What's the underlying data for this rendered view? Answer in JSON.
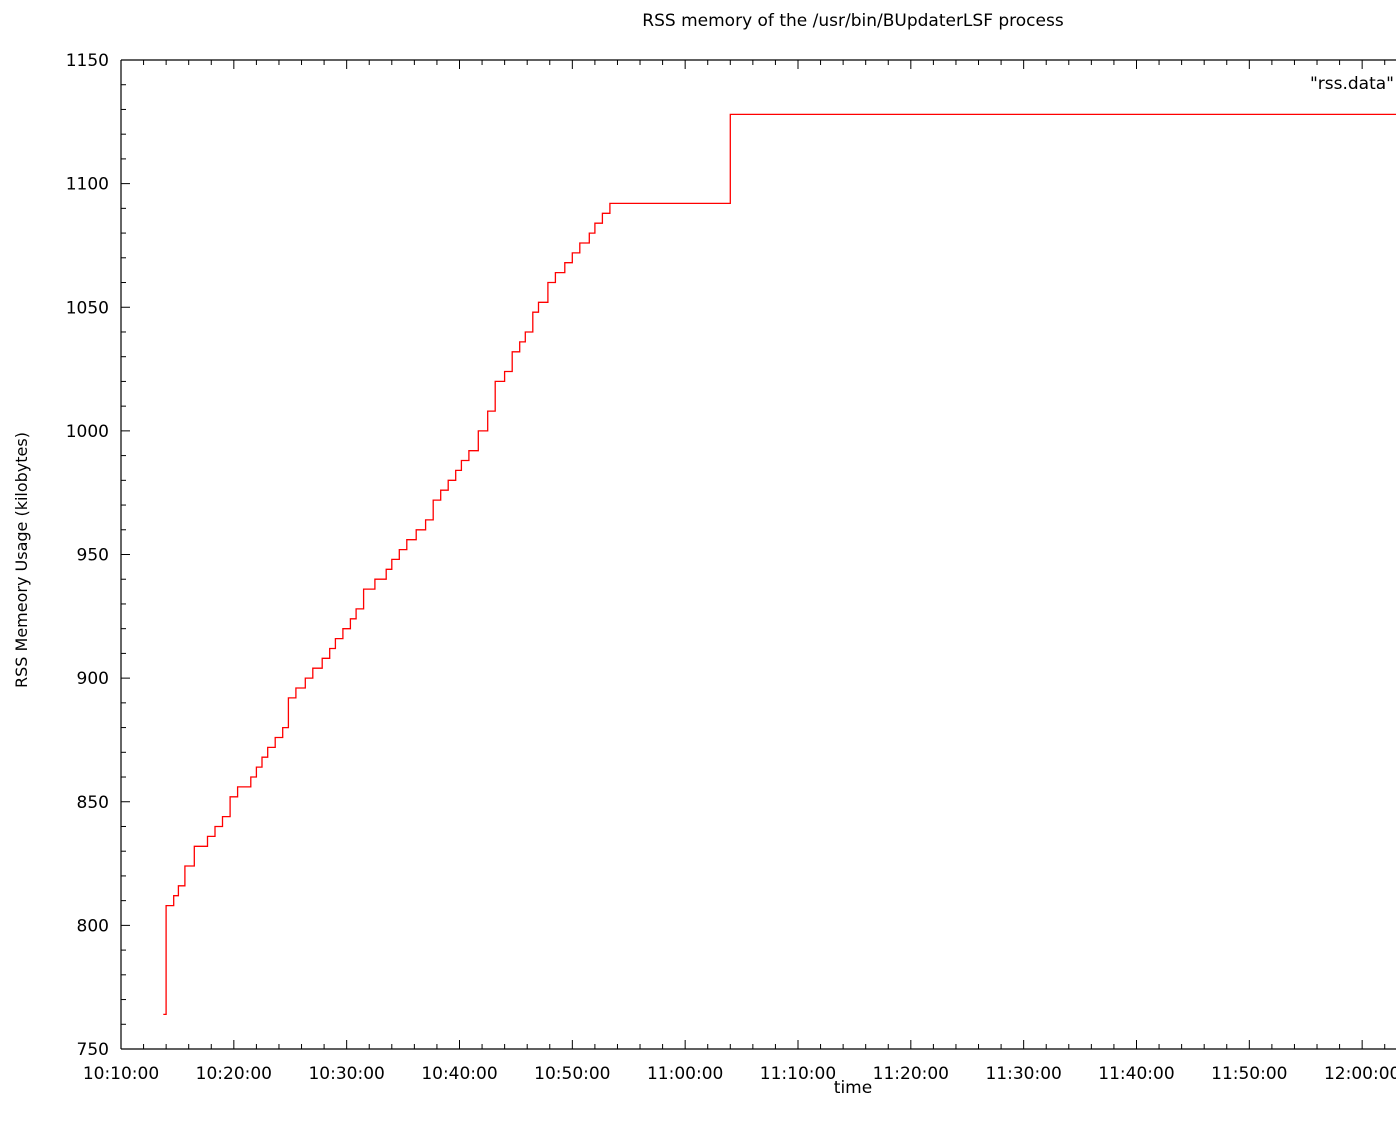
{
  "chart_data": {
    "type": "line",
    "title": "RSS memory of the /usr/bin/BUpdaterLSF process",
    "xlabel": "time",
    "ylabel": "RSS Memeory Usage (kilobytes)",
    "legend": "\"rss.data\"",
    "legend_position": "top-right",
    "grid": false,
    "ylim": [
      750,
      1150
    ],
    "xlim": [
      "10:10:00",
      "12:03:00"
    ],
    "y_ticks": [
      750,
      800,
      850,
      900,
      950,
      1000,
      1050,
      1100,
      1150
    ],
    "x_ticks": [
      "10:10:00",
      "10:20:00",
      "10:30:00",
      "10:40:00",
      "10:50:00",
      "11:00:00",
      "11:10:00",
      "11:20:00",
      "11:30:00",
      "11:40:00",
      "11:50:00",
      "12:00:00"
    ],
    "series": [
      {
        "color": "#ff0000",
        "x": [
          "10:13:45",
          "10:14:00",
          "10:14:40",
          "10:15:05",
          "10:15:40",
          "10:16:30",
          "10:17:40",
          "10:18:20",
          "10:19:00",
          "10:19:40",
          "10:20:20",
          "10:21:30",
          "10:22:00",
          "10:22:30",
          "10:23:00",
          "10:23:40",
          "10:24:20",
          "10:24:50",
          "10:25:30",
          "10:26:20",
          "10:27:00",
          "10:27:50",
          "10:28:30",
          "10:29:00",
          "10:29:40",
          "10:30:20",
          "10:30:50",
          "10:31:30",
          "10:32:30",
          "10:33:30",
          "10:34:00",
          "10:34:40",
          "10:35:20",
          "10:36:10",
          "10:37:00",
          "10:37:40",
          "10:38:20",
          "10:39:00",
          "10:39:40",
          "10:40:10",
          "10:40:50",
          "10:41:40",
          "10:42:30",
          "10:43:10",
          "10:44:00",
          "10:44:40",
          "10:45:20",
          "10:45:50",
          "10:46:30",
          "10:47:00",
          "10:47:50",
          "10:48:30",
          "10:49:20",
          "10:50:00",
          "10:50:40",
          "10:51:30",
          "10:52:00",
          "10:52:40",
          "10:53:20",
          "10:54:10",
          "10:54:40",
          "11:00:00",
          "11:03:40",
          "11:04:00",
          "11:10:00",
          "11:20:00",
          "11:30:00",
          "11:40:00",
          "11:50:00",
          "12:00:00",
          "12:03:00"
        ],
        "y": [
          764,
          808,
          812,
          816,
          824,
          832,
          836,
          840,
          844,
          852,
          856,
          860,
          864,
          868,
          872,
          876,
          880,
          892,
          896,
          900,
          904,
          908,
          912,
          916,
          920,
          924,
          928,
          936,
          940,
          944,
          948,
          952,
          956,
          960,
          964,
          972,
          976,
          980,
          984,
          988,
          992,
          1000,
          1008,
          1020,
          1024,
          1032,
          1036,
          1040,
          1048,
          1052,
          1060,
          1064,
          1068,
          1072,
          1076,
          1080,
          1084,
          1088,
          1092,
          1092,
          1092,
          1092,
          1092,
          1128,
          1128,
          1128,
          1128,
          1128,
          1128,
          1128,
          1128
        ]
      }
    ]
  }
}
